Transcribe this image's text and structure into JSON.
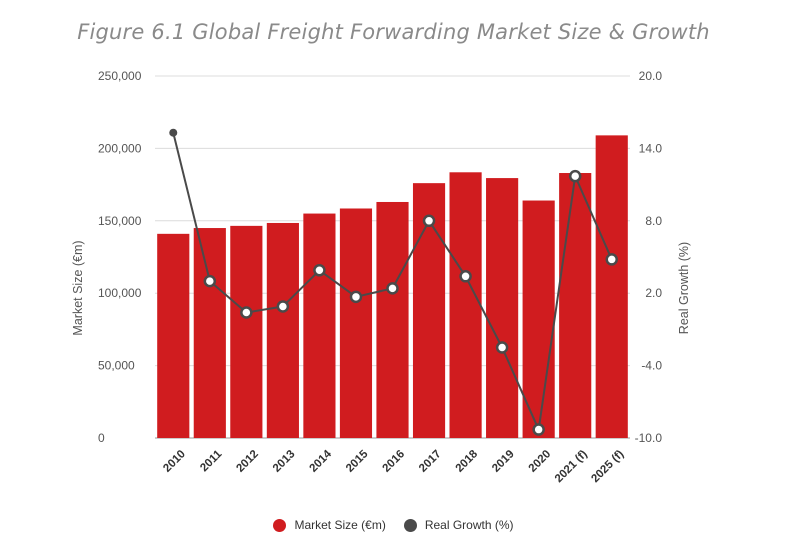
{
  "title": "Figure 6.1 Global Freight Forwarding Market Size & Growth",
  "chart_data": {
    "type": "bar",
    "categories": [
      "2010",
      "2011",
      "2012",
      "2013",
      "2014",
      "2015",
      "2016",
      "2017",
      "2018",
      "2019",
      "2020",
      "2021 (f)",
      "2025 (f)"
    ],
    "series": [
      {
        "name": "Market Size (€m)",
        "type": "bar",
        "axis": "left",
        "color": "#d01c1f",
        "values": [
          141000,
          145000,
          146500,
          148500,
          155000,
          158500,
          163000,
          176000,
          183500,
          179500,
          164000,
          183000,
          209000
        ]
      },
      {
        "name": "Real Growth (%)",
        "type": "line",
        "axis": "right",
        "color": "#4a4a4a",
        "values": [
          15.3,
          3.0,
          0.4,
          0.9,
          3.9,
          1.7,
          2.4,
          8.0,
          3.4,
          -2.5,
          -9.3,
          11.7,
          4.8
        ]
      }
    ],
    "ylabel": "Market Size (€m)",
    "y2label": "Real Growth (%)",
    "ylim": [
      0,
      250000
    ],
    "y2lim": [
      -10,
      20
    ],
    "yticks": [
      0,
      50000,
      100000,
      150000,
      200000,
      250000
    ],
    "yticklabels": [
      "0",
      "50,000",
      "100,000",
      "150,000",
      "200,000",
      "250,000"
    ],
    "y2ticks": [
      -10,
      -4,
      2,
      8,
      14,
      20
    ],
    "y2ticklabels": [
      "-10.0",
      "-4.0",
      "2.0",
      "8.0",
      "14.0",
      "20.0"
    ],
    "grid": true,
    "legend": "bottom"
  }
}
